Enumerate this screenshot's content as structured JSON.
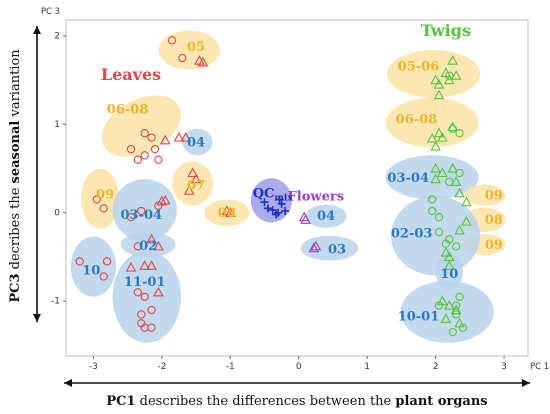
{
  "chart_data": {
    "type": "scatter",
    "xlabel": "PC 1",
    "ylabel": "PC 3",
    "xlim": [
      -3.4,
      3.35
    ],
    "ylim": [
      -1.62,
      2.18
    ],
    "xticks": [
      -3,
      -2,
      -1,
      0,
      1,
      2,
      3
    ],
    "yticks": [
      -1,
      0,
      1,
      2
    ],
    "grid": false,
    "x_caption": {
      "prefix": "PC1",
      "middle": " describes the differences between the ",
      "suffix": "plant organs"
    },
    "y_caption": {
      "prefix": "PC3",
      "middle": " decribes the ",
      "strong": "seasonal",
      "suffix": " variantion"
    },
    "colors": {
      "leaves": "#e0474a",
      "twigs": "#55c43a",
      "flowers": "#a33fbf",
      "qc": "#1f2fbf",
      "yellow_ellipse": "#fbe3a6",
      "blue_ellipse": "#b9d2ea",
      "qc_ellipse": "#8e8fe6",
      "blue_text": "#2a79c2",
      "yellow_text": "#f2b326",
      "frame": "#bfbfbf"
    },
    "group_labels": [
      {
        "text": "Leaves",
        "x": -2.45,
        "y": 1.55,
        "color": "leaves",
        "size": 16
      },
      {
        "text": "Twigs",
        "x": 2.15,
        "y": 2.05,
        "color": "twigs",
        "size": 16
      },
      {
        "text": "Flowers",
        "x": 0.25,
        "y": 0.18,
        "color": "flowers",
        "size": 13
      }
    ],
    "qc_label": {
      "main": "QC",
      "sub": "mix",
      "x": -0.38,
      "y": 0.22
    },
    "ellipses": [
      {
        "cx": -1.6,
        "cy": 1.84,
        "rx": 0.45,
        "ry": 0.22,
        "rot": 0,
        "fill": "yellow_ellipse",
        "label": "05",
        "lx": -1.5,
        "ly": 1.87,
        "lc": "yellow_text"
      },
      {
        "cx": -2.3,
        "cy": 0.98,
        "rx": 0.62,
        "ry": 0.3,
        "rot": -28,
        "fill": "yellow_ellipse",
        "label": "06-08",
        "lx": -2.5,
        "ly": 1.16,
        "lc": "yellow_text"
      },
      {
        "cx": -1.48,
        "cy": 0.8,
        "rx": 0.22,
        "ry": 0.15,
        "rot": 0,
        "fill": "blue_ellipse",
        "label": "04",
        "lx": -1.5,
        "ly": 0.79,
        "lc": "blue_text"
      },
      {
        "cx": -1.55,
        "cy": 0.33,
        "rx": 0.3,
        "ry": 0.25,
        "rot": 0,
        "fill": "yellow_ellipse",
        "label": "07",
        "lx": -1.5,
        "ly": 0.3,
        "lc": "yellow_text"
      },
      {
        "cx": -2.9,
        "cy": 0.16,
        "rx": 0.28,
        "ry": 0.34,
        "rot": 0,
        "fill": "yellow_ellipse",
        "label": "09",
        "lx": -2.83,
        "ly": 0.2,
        "lc": "yellow_text"
      },
      {
        "cx": -1.05,
        "cy": 0.0,
        "rx": 0.33,
        "ry": 0.15,
        "rot": 0,
        "fill": "yellow_ellipse",
        "label": "08",
        "lx": -1.05,
        "ly": -0.01,
        "lc": "yellow_text"
      },
      {
        "cx": -2.25,
        "cy": 0.03,
        "rx": 0.47,
        "ry": 0.35,
        "rot": 0,
        "fill": "blue_ellipse",
        "label": "03-04",
        "lx": -2.3,
        "ly": -0.03,
        "lc": "blue_text"
      },
      {
        "cx": -2.2,
        "cy": -0.36,
        "rx": 0.4,
        "ry": 0.14,
        "rot": 0,
        "fill": "blue_ellipse",
        "label": "02",
        "lx": -2.2,
        "ly": -0.38,
        "lc": "blue_text"
      },
      {
        "cx": -3.0,
        "cy": -0.61,
        "rx": 0.33,
        "ry": 0.34,
        "rot": 0,
        "fill": "blue_ellipse",
        "label": "10",
        "lx": -3.03,
        "ly": -0.66,
        "lc": "blue_text"
      },
      {
        "cx": -2.22,
        "cy": -0.95,
        "rx": 0.5,
        "ry": 0.52,
        "rot": 0,
        "fill": "blue_ellipse",
        "label": "11-01",
        "lx": -2.25,
        "ly": -0.79,
        "lc": "blue_text"
      },
      {
        "cx": -0.4,
        "cy": 0.14,
        "rx": 0.3,
        "ry": 0.25,
        "rot": 0,
        "fill": "qc_ellipse",
        "label": "",
        "lx": 0,
        "ly": 0,
        "lc": "qc"
      },
      {
        "cx": 0.4,
        "cy": -0.04,
        "rx": 0.3,
        "ry": 0.13,
        "rot": 0,
        "fill": "blue_ellipse",
        "label": "04",
        "lx": 0.4,
        "ly": -0.04,
        "lc": "blue_text"
      },
      {
        "cx": 0.45,
        "cy": -0.4,
        "rx": 0.42,
        "ry": 0.14,
        "rot": 0,
        "fill": "blue_ellipse",
        "label": "03",
        "lx": 0.56,
        "ly": -0.42,
        "lc": "blue_text"
      },
      {
        "cx": 1.97,
        "cy": 1.57,
        "rx": 0.68,
        "ry": 0.27,
        "rot": 0,
        "fill": "yellow_ellipse",
        "label": "05-06",
        "lx": 1.75,
        "ly": 1.65,
        "lc": "yellow_text"
      },
      {
        "cx": 1.95,
        "cy": 1.02,
        "rx": 0.68,
        "ry": 0.28,
        "rot": 0,
        "fill": "yellow_ellipse",
        "label": "06-08",
        "lx": 1.72,
        "ly": 1.05,
        "lc": "yellow_text"
      },
      {
        "cx": 1.95,
        "cy": 0.4,
        "rx": 0.68,
        "ry": 0.25,
        "rot": 0,
        "fill": "blue_ellipse",
        "label": "03-04",
        "lx": 1.6,
        "ly": 0.39,
        "lc": "blue_text"
      },
      {
        "cx": 2.72,
        "cy": 0.2,
        "rx": 0.3,
        "ry": 0.12,
        "rot": 0,
        "fill": "yellow_ellipse",
        "label": "09",
        "lx": 2.85,
        "ly": 0.19,
        "lc": "yellow_text"
      },
      {
        "cx": 2.72,
        "cy": -0.08,
        "rx": 0.3,
        "ry": 0.14,
        "rot": 0,
        "fill": "yellow_ellipse",
        "label": "08",
        "lx": 2.85,
        "ly": -0.09,
        "lc": "yellow_text"
      },
      {
        "cx": 2.72,
        "cy": -0.36,
        "rx": 0.3,
        "ry": 0.12,
        "rot": 0,
        "fill": "yellow_ellipse",
        "label": "09",
        "lx": 2.85,
        "ly": -0.37,
        "lc": "yellow_text"
      },
      {
        "cx": 2.0,
        "cy": -0.26,
        "rx": 0.65,
        "ry": 0.45,
        "rot": 0,
        "fill": "blue_ellipse",
        "label": "02-03",
        "lx": 1.65,
        "ly": -0.24,
        "lc": "blue_text"
      },
      {
        "cx": 2.2,
        "cy": -0.67,
        "rx": 0.2,
        "ry": 0.2,
        "rot": 0,
        "fill": "blue_ellipse",
        "label": "10",
        "lx": 2.2,
        "ly": -0.7,
        "lc": "blue_text"
      },
      {
        "cx": 2.17,
        "cy": -1.12,
        "rx": 0.68,
        "ry": 0.35,
        "rot": 0,
        "fill": "blue_ellipse",
        "label": "10-01",
        "lx": 1.75,
        "ly": -1.18,
        "lc": "blue_text"
      }
    ],
    "series": [
      {
        "name": "Leaves circle",
        "marker": "circle",
        "color": "leaves",
        "points": [
          [
            -1.85,
            1.95
          ],
          [
            -1.7,
            1.75
          ],
          [
            -2.25,
            0.9
          ],
          [
            -2.15,
            0.85
          ],
          [
            -2.1,
            0.72
          ],
          [
            -2.25,
            0.65
          ],
          [
            -2.35,
            0.6
          ],
          [
            -2.45,
            0.72
          ],
          [
            -2.05,
            0.6
          ],
          [
            -2.85,
            0.05
          ],
          [
            -2.95,
            0.15
          ],
          [
            -2.3,
            0.02
          ],
          [
            -2.45,
            -0.05
          ],
          [
            -2.05,
            0.08
          ],
          [
            -2.35,
            -0.38
          ],
          [
            -3.2,
            -0.55
          ],
          [
            -2.8,
            -0.55
          ],
          [
            -2.85,
            -0.72
          ],
          [
            -2.35,
            -0.9
          ],
          [
            -2.25,
            -0.95
          ],
          [
            -2.15,
            -1.1
          ],
          [
            -2.3,
            -1.25
          ],
          [
            -2.25,
            -1.3
          ],
          [
            -2.15,
            -1.3
          ],
          [
            -2.3,
            -1.15
          ]
        ]
      },
      {
        "name": "Leaves triangle",
        "marker": "triangle",
        "color": "leaves",
        "points": [
          [
            -1.45,
            1.72
          ],
          [
            -1.4,
            1.7
          ],
          [
            -1.65,
            0.85
          ],
          [
            -1.75,
            0.85
          ],
          [
            -1.95,
            0.82
          ],
          [
            -1.55,
            0.45
          ],
          [
            -1.5,
            0.38
          ],
          [
            -1.6,
            0.25
          ],
          [
            -1.05,
            0.02
          ],
          [
            -1.0,
            0.0
          ],
          [
            -1.95,
            0.14
          ],
          [
            -2.0,
            0.13
          ],
          [
            -2.15,
            -0.3
          ],
          [
            -2.05,
            -0.38
          ],
          [
            -2.25,
            -0.6
          ],
          [
            -2.15,
            -0.6
          ],
          [
            -2.45,
            -0.62
          ],
          [
            -2.05,
            -0.9
          ]
        ]
      },
      {
        "name": "Twigs triangle",
        "marker": "triangle",
        "color": "twigs",
        "points": [
          [
            2.25,
            1.72
          ],
          [
            2.3,
            1.55
          ],
          [
            2.15,
            1.58
          ],
          [
            2.2,
            1.5
          ],
          [
            2.0,
            1.5
          ],
          [
            2.05,
            1.45
          ],
          [
            2.05,
            1.33
          ],
          [
            2.25,
            0.97
          ],
          [
            2.05,
            0.9
          ],
          [
            1.95,
            0.84
          ],
          [
            2.0,
            0.75
          ],
          [
            2.1,
            0.85
          ],
          [
            2.0,
            0.5
          ],
          [
            2.1,
            0.45
          ],
          [
            2.25,
            0.5
          ],
          [
            2.3,
            0.35
          ],
          [
            2.0,
            0.38
          ],
          [
            2.35,
            0.22
          ],
          [
            2.45,
            0.12
          ],
          [
            2.45,
            -0.1
          ],
          [
            2.35,
            -0.2
          ],
          [
            2.15,
            -0.45
          ],
          [
            2.2,
            -0.5
          ],
          [
            2.2,
            -0.6
          ],
          [
            2.1,
            -1.0
          ],
          [
            2.2,
            -1.05
          ],
          [
            2.3,
            -1.1
          ],
          [
            2.15,
            -1.2
          ],
          [
            2.35,
            -1.25
          ]
        ]
      },
      {
        "name": "Twigs circle",
        "marker": "circle",
        "color": "twigs",
        "points": [
          [
            2.2,
            1.55
          ],
          [
            2.25,
            0.95
          ],
          [
            2.35,
            0.9
          ],
          [
            2.2,
            0.35
          ],
          [
            2.35,
            0.45
          ],
          [
            1.95,
            0.15
          ],
          [
            1.95,
            0.02
          ],
          [
            2.05,
            -0.05
          ],
          [
            2.05,
            -0.22
          ],
          [
            2.15,
            -0.35
          ],
          [
            2.2,
            -0.3
          ],
          [
            2.3,
            -0.38
          ],
          [
            2.35,
            -0.95
          ],
          [
            2.3,
            -1.05
          ],
          [
            2.3,
            -1.15
          ],
          [
            2.05,
            -1.05
          ],
          [
            2.25,
            -1.35
          ],
          [
            2.4,
            -1.3
          ]
        ]
      },
      {
        "name": "Flowers triangle",
        "marker": "triangle",
        "color": "flowers",
        "points": [
          [
            0.08,
            -0.05
          ],
          [
            0.1,
            -0.08
          ],
          [
            0.25,
            -0.38
          ],
          [
            0.22,
            -0.4
          ]
        ]
      },
      {
        "name": "QC",
        "marker": "plus",
        "color": "qc",
        "points": [
          [
            -0.45,
            0.05
          ],
          [
            -0.25,
            0.1
          ],
          [
            -0.3,
            0.0
          ],
          [
            -0.38,
            0.03
          ],
          [
            -0.2,
            0.02
          ],
          [
            -0.28,
            0.15
          ],
          [
            -0.5,
            0.12
          ],
          [
            -0.33,
            -0.02
          ]
        ]
      }
    ]
  }
}
